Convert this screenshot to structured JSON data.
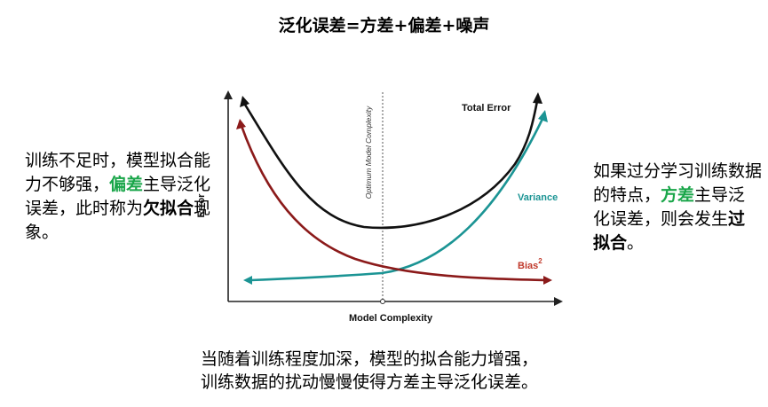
{
  "title": "泛化误差=方差+偏差+噪声",
  "left_text": {
    "part1": "训练不足时，模型拟合能力不够强，",
    "bias_word": "偏差",
    "part2": "主导泛化误差，此时称为",
    "underfit_word": "欠拟合",
    "part3": "现象。"
  },
  "right_text": {
    "part1": "如果过分学习训练数据的特点，",
    "variance_word": "方差",
    "part2": "主导泛化误差，则会发生",
    "overfit_word": "过拟合",
    "part3": "。"
  },
  "bottom_text": {
    "line1": "当随着训练程度加深，模型的拟合能力增强，",
    "line2": "训练数据的扰动慢慢使得方差主导泛化误差。"
  },
  "chart": {
    "x_label": "Model Complexity",
    "y_label": "Error",
    "optimum_label": "Optimum Model Complexity",
    "total_error_label": "Total Error",
    "variance_label": "Variance",
    "bias_label": "Bias",
    "bias_superscript": "2",
    "colors": {
      "total_error": "#111111",
      "variance": "#1b9494",
      "bias": "#8b1a1a",
      "variance_label": "#1b9494",
      "bias_label": "#c0392b",
      "highlight_green": "#1aa64a"
    }
  }
}
